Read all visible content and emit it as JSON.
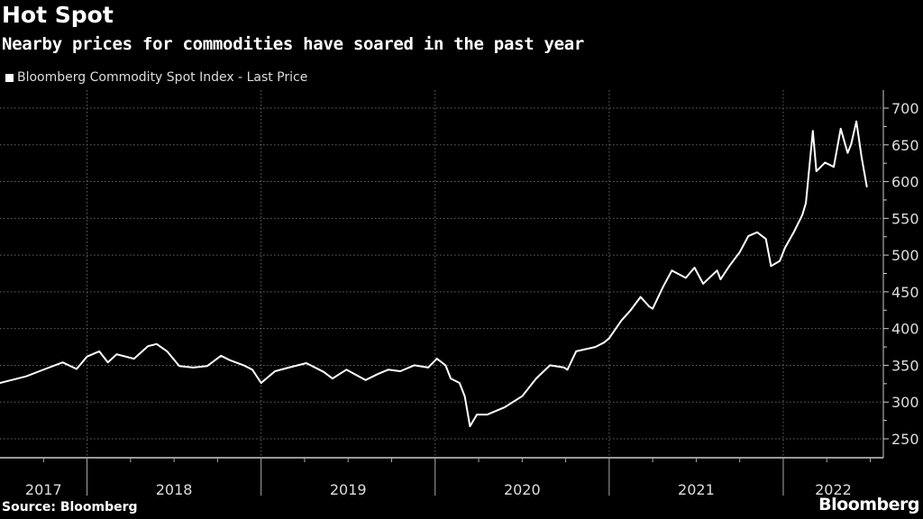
{
  "chart_data": {
    "type": "line",
    "title": "Hot Spot",
    "subtitle": "Nearby prices for commodities have soared in the past year",
    "source": "Source: Bloomberg",
    "logo": "Bloomberg",
    "series": [
      {
        "name": "Bloomberg Commodity Spot Index - Last Price",
        "color": "#ffffff",
        "x": [
          2017.5,
          2017.65,
          2017.76,
          2017.86,
          2017.94,
          2018.0,
          2018.07,
          2018.12,
          2018.17,
          2018.27,
          2018.35,
          2018.4,
          2018.46,
          2018.53,
          2018.61,
          2018.69,
          2018.77,
          2018.82,
          2018.9,
          2018.95,
          2019.0,
          2019.08,
          2019.16,
          2019.26,
          2019.36,
          2019.41,
          2019.49,
          2019.6,
          2019.67,
          2019.73,
          2019.8,
          2019.88,
          2019.96,
          2020.01,
          2020.06,
          2020.09,
          2020.14,
          2020.17,
          2020.2,
          2020.24,
          2020.3,
          2020.4,
          2020.5,
          2020.58,
          2020.66,
          2020.74,
          2020.76,
          2020.81,
          2020.92,
          2020.97,
          2021.0,
          2021.07,
          2021.12,
          2021.18,
          2021.23,
          2021.25,
          2021.31,
          2021.36,
          2021.44,
          2021.49,
          2021.54,
          2021.62,
          2021.64,
          2021.69,
          2021.75,
          2021.8,
          2021.85,
          2021.9,
          2021.93,
          2021.98,
          2022.01,
          2022.06,
          2022.11,
          2022.13,
          2022.17,
          2022.19,
          2022.24,
          2022.29,
          2022.33,
          2022.37,
          2022.39,
          2022.42,
          2022.45,
          2022.48
        ],
        "values": [
          326,
          335,
          345,
          354,
          345,
          362,
          369,
          354,
          365,
          359,
          376,
          379,
          369,
          349,
          347,
          349,
          363,
          357,
          350,
          344,
          326,
          342,
          347,
          353,
          341,
          332,
          344,
          330,
          338,
          344,
          342,
          350,
          347,
          359,
          350,
          332,
          326,
          308,
          267,
          283,
          283,
          293,
          308,
          332,
          350,
          347,
          344,
          369,
          375,
          381,
          387,
          411,
          424,
          443,
          430,
          427,
          457,
          479,
          469,
          483,
          461,
          479,
          467,
          485,
          504,
          526,
          531,
          522,
          485,
          492,
          510,
          531,
          555,
          571,
          669,
          614,
          626,
          620,
          672,
          639,
          651,
          682,
          633,
          593
        ]
      }
    ],
    "x_ticks": [
      "2017",
      "2018",
      "2019",
      "2020",
      "2021",
      "2022"
    ],
    "y_ticks": [
      250,
      300,
      350,
      400,
      450,
      500,
      550,
      600,
      650,
      700
    ],
    "xlim": [
      2017.5,
      2022.575
    ],
    "ylim": [
      235,
      720
    ],
    "grid": true,
    "legend_placement": "top-left"
  }
}
